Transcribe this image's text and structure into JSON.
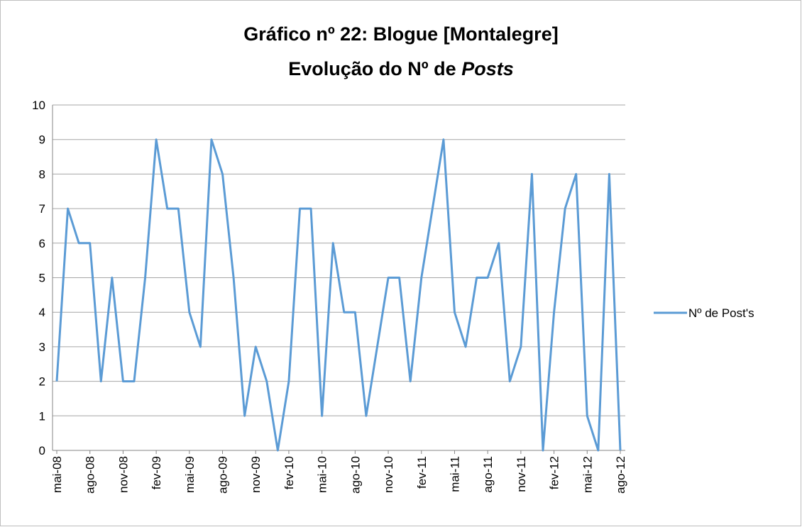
{
  "chart_data": {
    "type": "line",
    "title": {
      "line1": "Gráfico nº 22: Blogue [Montalegre]",
      "line2": "Evolução do Nº de",
      "line2_italic": "Posts"
    },
    "categories": [
      "mai-08",
      null,
      null,
      "ago-08",
      null,
      null,
      "nov-08",
      null,
      null,
      "fev-09",
      null,
      null,
      "mai-09",
      null,
      null,
      "ago-09",
      null,
      null,
      "nov-09",
      null,
      null,
      "fev-10",
      null,
      null,
      "mai-10",
      null,
      null,
      "ago-10",
      null,
      null,
      "nov-10",
      null,
      null,
      "fev-11",
      null,
      null,
      "mai-11",
      null,
      null,
      "ago-11",
      null,
      null,
      "nov-11",
      null,
      null,
      "fev-12",
      null,
      null,
      "mai-12",
      null,
      null,
      "ago-12"
    ],
    "series": [
      {
        "name": "Nº de Post's",
        "color": "#5b9bd5",
        "values": [
          2,
          7,
          6,
          6,
          2,
          5,
          2,
          2,
          5,
          9,
          7,
          7,
          4,
          3,
          9,
          8,
          5,
          1,
          3,
          2,
          0,
          2,
          7,
          7,
          1,
          6,
          4,
          4,
          1,
          3,
          5,
          5,
          2,
          5,
          7,
          9,
          4,
          3,
          5,
          5,
          6,
          2,
          3,
          8,
          0,
          4,
          7,
          8,
          1,
          0,
          8,
          0
        ]
      }
    ],
    "ylim": [
      0,
      10
    ],
    "yticks": [
      0,
      1,
      2,
      3,
      4,
      5,
      6,
      7,
      8,
      9,
      10
    ],
    "grid": true,
    "legend": "right"
  }
}
